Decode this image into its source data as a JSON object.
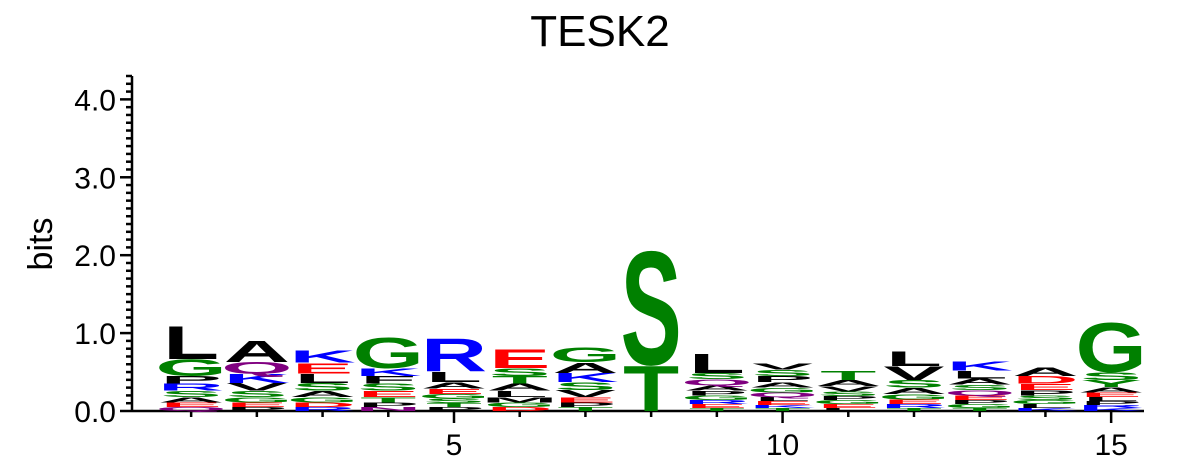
{
  "chart_data": {
    "type": "sequence-logo",
    "title": "TESK2",
    "xlabel": "",
    "ylabel": "bits",
    "ylim": [
      0,
      4.3
    ],
    "xlim": [
      0.1,
      15.5
    ],
    "y_ticks": [
      "0.0",
      "1.0",
      "2.0",
      "3.0",
      "4.0"
    ],
    "y_tick_values": [
      0,
      1,
      2,
      3,
      4
    ],
    "x_ticks": [
      "5",
      "10",
      "15"
    ],
    "x_tick_values": [
      5,
      10,
      15
    ],
    "colors": {
      "hydrophobic": "#000000",
      "polar": "#008000",
      "basic": "#0000ff",
      "acidic": "#ff0000",
      "amide": "#800080"
    },
    "positions": [
      {
        "pos": 1,
        "letters": [
          {
            "aa": "L",
            "bits": 0.44,
            "color": "#000000"
          },
          {
            "aa": "G",
            "bits": 0.22,
            "color": "#008000"
          },
          {
            "aa": "P",
            "bits": 0.1,
            "color": "#000000"
          },
          {
            "aa": "R",
            "bits": 0.09,
            "color": "#0000ff"
          },
          {
            "aa": "S",
            "bits": 0.08,
            "color": "#008000"
          },
          {
            "aa": "A",
            "bits": 0.07,
            "color": "#000000"
          },
          {
            "aa": "E",
            "bits": 0.06,
            "color": "#ff0000"
          },
          {
            "aa": "Q",
            "bits": 0.05,
            "color": "#800080"
          }
        ]
      },
      {
        "pos": 2,
        "letters": [
          {
            "aa": "A",
            "bits": 0.28,
            "color": "#000000"
          },
          {
            "aa": "Q",
            "bits": 0.15,
            "color": "#800080"
          },
          {
            "aa": "K",
            "bits": 0.12,
            "color": "#0000ff"
          },
          {
            "aa": "V",
            "bits": 0.1,
            "color": "#000000"
          },
          {
            "aa": "S",
            "bits": 0.08,
            "color": "#008000"
          },
          {
            "aa": "G",
            "bits": 0.07,
            "color": "#008000"
          },
          {
            "aa": "E",
            "bits": 0.06,
            "color": "#ff0000"
          },
          {
            "aa": "P",
            "bits": 0.05,
            "color": "#000000"
          }
        ]
      },
      {
        "pos": 3,
        "letters": [
          {
            "aa": "K",
            "bits": 0.16,
            "color": "#0000ff"
          },
          {
            "aa": "E",
            "bits": 0.14,
            "color": "#ff0000"
          },
          {
            "aa": "L",
            "bits": 0.12,
            "color": "#000000"
          },
          {
            "aa": "S",
            "bits": 0.1,
            "color": "#008000"
          },
          {
            "aa": "A",
            "bits": 0.08,
            "color": "#000000"
          },
          {
            "aa": "G",
            "bits": 0.07,
            "color": "#008000"
          },
          {
            "aa": "D",
            "bits": 0.06,
            "color": "#ff0000"
          },
          {
            "aa": "R",
            "bits": 0.05,
            "color": "#0000ff"
          }
        ]
      },
      {
        "pos": 4,
        "letters": [
          {
            "aa": "G",
            "bits": 0.4,
            "color": "#008000"
          },
          {
            "aa": "F",
            "bits": 0.1,
            "color": "#000000"
          },
          {
            "aa": "K",
            "bits": 0.1,
            "color": "#0000ff"
          },
          {
            "aa": "S",
            "bits": 0.09,
            "color": "#008000"
          },
          {
            "aa": "E",
            "bits": 0.08,
            "color": "#ff0000"
          },
          {
            "aa": "T",
            "bits": 0.07,
            "color": "#008000"
          },
          {
            "aa": "P",
            "bits": 0.06,
            "color": "#000000"
          },
          {
            "aa": "N",
            "bits": 0.05,
            "color": "#800080"
          }
        ]
      },
      {
        "pos": 5,
        "letters": [
          {
            "aa": "R",
            "bits": 0.44,
            "color": "#0000ff"
          },
          {
            "aa": "L",
            "bits": 0.14,
            "color": "#000000"
          },
          {
            "aa": "A",
            "bits": 0.08,
            "color": "#000000"
          },
          {
            "aa": "E",
            "bits": 0.07,
            "color": "#ff0000"
          },
          {
            "aa": "S",
            "bits": 0.06,
            "color": "#008000"
          },
          {
            "aa": "G",
            "bits": 0.06,
            "color": "#008000"
          },
          {
            "aa": "P",
            "bits": 0.05,
            "color": "#000000"
          },
          {
            "aa": "T",
            "bits": 0.05,
            "color": "#008000"
          }
        ]
      },
      {
        "pos": 6,
        "letters": [
          {
            "aa": "E",
            "bits": 0.25,
            "color": "#ff0000"
          },
          {
            "aa": "T",
            "bits": 0.1,
            "color": "#008000"
          },
          {
            "aa": "S",
            "bits": 0.1,
            "color": "#008000"
          },
          {
            "aa": "A",
            "bits": 0.09,
            "color": "#000000"
          },
          {
            "aa": "L",
            "bits": 0.08,
            "color": "#000000"
          },
          {
            "aa": "M",
            "bits": 0.07,
            "color": "#000000"
          },
          {
            "aa": "G",
            "bits": 0.06,
            "color": "#008000"
          },
          {
            "aa": "D",
            "bits": 0.05,
            "color": "#ff0000"
          }
        ]
      },
      {
        "pos": 7,
        "letters": [
          {
            "aa": "G",
            "bits": 0.2,
            "color": "#008000"
          },
          {
            "aa": "A",
            "bits": 0.14,
            "color": "#000000"
          },
          {
            "aa": "K",
            "bits": 0.12,
            "color": "#0000ff"
          },
          {
            "aa": "S",
            "bits": 0.1,
            "color": "#008000"
          },
          {
            "aa": "V",
            "bits": 0.09,
            "color": "#000000"
          },
          {
            "aa": "E",
            "bits": 0.07,
            "color": "#ff0000"
          },
          {
            "aa": "P",
            "bits": 0.06,
            "color": "#000000"
          },
          {
            "aa": "T",
            "bits": 0.05,
            "color": "#008000"
          }
        ]
      },
      {
        "pos": 8,
        "letters": [
          {
            "aa": "S",
            "bits": 1.5,
            "color": "#008000"
          },
          {
            "aa": "T",
            "bits": 0.6,
            "color": "#008000"
          }
        ]
      },
      {
        "pos": 9,
        "letters": [
          {
            "aa": "L",
            "bits": 0.26,
            "color": "#000000"
          },
          {
            "aa": "Q",
            "bits": 0.08,
            "color": "#800080"
          },
          {
            "aa": "S",
            "bits": 0.08,
            "color": "#008000"
          },
          {
            "aa": "A",
            "bits": 0.07,
            "color": "#000000"
          },
          {
            "aa": "G",
            "bits": 0.06,
            "color": "#008000"
          },
          {
            "aa": "P",
            "bits": 0.06,
            "color": "#000000"
          },
          {
            "aa": "E",
            "bits": 0.05,
            "color": "#ff0000"
          },
          {
            "aa": "R",
            "bits": 0.05,
            "color": "#0000ff"
          },
          {
            "aa": "T",
            "bits": 0.04,
            "color": "#008000"
          }
        ]
      },
      {
        "pos": 10,
        "letters": [
          {
            "aa": "P",
            "bits": 0.08,
            "color": "#000000"
          },
          {
            "aa": "S",
            "bits": 0.08,
            "color": "#008000"
          },
          {
            "aa": "V",
            "bits": 0.08,
            "color": "#000000"
          },
          {
            "aa": "A",
            "bits": 0.07,
            "color": "#000000"
          },
          {
            "aa": "Q",
            "bits": 0.06,
            "color": "#800080"
          },
          {
            "aa": "G",
            "bits": 0.06,
            "color": "#008000"
          },
          {
            "aa": "E",
            "bits": 0.05,
            "color": "#ff0000"
          },
          {
            "aa": "L",
            "bits": 0.05,
            "color": "#000000"
          },
          {
            "aa": "T",
            "bits": 0.04,
            "color": "#008000"
          },
          {
            "aa": "K",
            "bits": 0.04,
            "color": "#0000ff"
          }
        ]
      },
      {
        "pos": 11,
        "letters": [
          {
            "aa": "T",
            "bits": 0.12,
            "color": "#008000"
          },
          {
            "aa": "A",
            "bits": 0.08,
            "color": "#000000"
          },
          {
            "aa": "V",
            "bits": 0.07,
            "color": "#000000"
          },
          {
            "aa": "S",
            "bits": 0.06,
            "color": "#008000"
          },
          {
            "aa": "E",
            "bits": 0.05,
            "color": "#ff0000"
          },
          {
            "aa": "G",
            "bits": 0.05,
            "color": "#008000"
          },
          {
            "aa": "P",
            "bits": 0.05,
            "color": "#000000"
          },
          {
            "aa": "L",
            "bits": 0.04,
            "color": "#000000"
          }
        ]
      },
      {
        "pos": 12,
        "letters": [
          {
            "aa": "L",
            "bits": 0.2,
            "color": "#000000"
          },
          {
            "aa": "V",
            "bits": 0.18,
            "color": "#000000"
          },
          {
            "aa": "S",
            "bits": 0.1,
            "color": "#008000"
          },
          {
            "aa": "A",
            "bits": 0.08,
            "color": "#000000"
          },
          {
            "aa": "G",
            "bits": 0.07,
            "color": "#008000"
          },
          {
            "aa": "E",
            "bits": 0.06,
            "color": "#ff0000"
          },
          {
            "aa": "R",
            "bits": 0.05,
            "color": "#0000ff"
          },
          {
            "aa": "T",
            "bits": 0.04,
            "color": "#008000"
          }
        ]
      },
      {
        "pos": 13,
        "letters": [
          {
            "aa": "K",
            "bits": 0.12,
            "color": "#0000ff"
          },
          {
            "aa": "L",
            "bits": 0.1,
            "color": "#000000"
          },
          {
            "aa": "A",
            "bits": 0.08,
            "color": "#000000"
          },
          {
            "aa": "Q",
            "bits": 0.07,
            "color": "#800080"
          },
          {
            "aa": "S",
            "bits": 0.07,
            "color": "#008000"
          },
          {
            "aa": "E",
            "bits": 0.06,
            "color": "#ff0000"
          },
          {
            "aa": "G",
            "bits": 0.05,
            "color": "#008000"
          },
          {
            "aa": "P",
            "bits": 0.05,
            "color": "#000000"
          },
          {
            "aa": "T",
            "bits": 0.04,
            "color": "#008000"
          }
        ]
      },
      {
        "pos": 14,
        "letters": [
          {
            "aa": "A",
            "bits": 0.11,
            "color": "#000000"
          },
          {
            "aa": "D",
            "bits": 0.1,
            "color": "#ff0000"
          },
          {
            "aa": "E",
            "bits": 0.08,
            "color": "#ff0000"
          },
          {
            "aa": "P",
            "bits": 0.07,
            "color": "#000000"
          },
          {
            "aa": "S",
            "bits": 0.06,
            "color": "#008000"
          },
          {
            "aa": "L",
            "bits": 0.05,
            "color": "#000000"
          },
          {
            "aa": "G",
            "bits": 0.05,
            "color": "#008000"
          },
          {
            "aa": "K",
            "bits": 0.04,
            "color": "#0000ff"
          }
        ]
      },
      {
        "pos": 15,
        "letters": [
          {
            "aa": "G",
            "bits": 0.65,
            "color": "#008000"
          },
          {
            "aa": "S",
            "bits": 0.1,
            "color": "#008000"
          },
          {
            "aa": "Y",
            "bits": 0.09,
            "color": "#008000"
          },
          {
            "aa": "A",
            "bits": 0.07,
            "color": "#000000"
          },
          {
            "aa": "E",
            "bits": 0.06,
            "color": "#ff0000"
          },
          {
            "aa": "P",
            "bits": 0.05,
            "color": "#000000"
          },
          {
            "aa": "L",
            "bits": 0.05,
            "color": "#000000"
          },
          {
            "aa": "K",
            "bits": 0.04,
            "color": "#0000ff"
          },
          {
            "aa": "R",
            "bits": 0.04,
            "color": "#0000ff"
          }
        ]
      }
    ]
  }
}
